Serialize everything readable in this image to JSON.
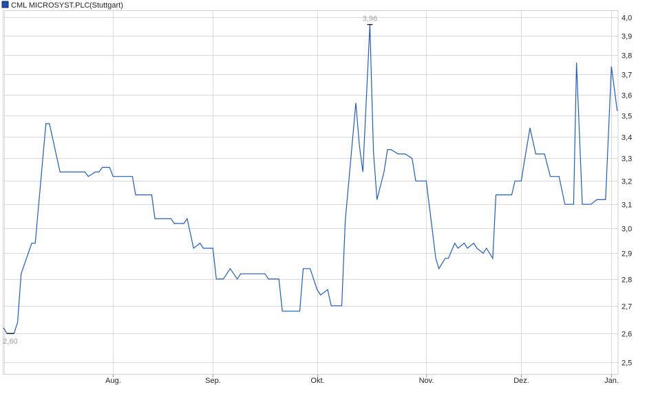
{
  "chart_data": {
    "type": "line",
    "title": "CML MICROSYST.PLC",
    "subtitle": "(Stuttgart)",
    "y_scale": "log",
    "ylim": [
      2.457,
      4.04
    ],
    "y_ticks": [
      "2,5",
      "2,6",
      "2,7",
      "2,8",
      "2,9",
      "3,0",
      "3,1",
      "3,2",
      "3,3",
      "3,4",
      "3,5",
      "3,6",
      "3,7",
      "3,8",
      "3,9",
      "4,0"
    ],
    "y_tick_values": [
      2.5,
      2.6,
      2.7,
      2.8,
      2.9,
      3.0,
      3.1,
      3.2,
      3.3,
      3.4,
      3.5,
      3.6,
      3.7,
      3.8,
      3.9,
      4.0
    ],
    "x_ticks": [
      "Aug.",
      "Sep.",
      "Okt.",
      "Nov.",
      "Dez.",
      "Jan."
    ],
    "grid": true,
    "legend": "top-left",
    "colors": {
      "line": "#1f5bbf",
      "legend_square": "#1f4fa8",
      "grid": "#d9d9d9",
      "annotation": "#a0a0a0"
    },
    "annotations": {
      "min": {
        "label": "2,60",
        "date": "03.07.",
        "value": 2.6
      },
      "max": {
        "label": "3,96",
        "date": "16.10.",
        "value": 3.96
      }
    },
    "series": [
      {
        "points": [
          [
            "01.07.",
            2.62
          ],
          [
            "02.07.",
            2.6
          ],
          [
            "04.07.",
            2.6
          ],
          [
            "05.07.",
            2.64
          ],
          [
            "06.07.",
            2.82
          ],
          [
            "09.07.",
            2.94
          ],
          [
            "10.07.",
            2.94
          ],
          [
            "13.07.",
            3.46
          ],
          [
            "14.07.",
            3.46
          ],
          [
            "17.07.",
            3.24
          ],
          [
            "24.07.",
            3.24
          ],
          [
            "25.07.",
            3.22
          ],
          [
            "27.07.",
            3.24
          ],
          [
            "28.07.",
            3.24
          ],
          [
            "29.07.",
            3.26
          ],
          [
            "31.07.",
            3.26
          ],
          [
            "01.08.",
            3.22
          ],
          [
            "07.08.",
            3.22
          ],
          [
            "08.08.",
            3.14
          ],
          [
            "13.08.",
            3.14
          ],
          [
            "14.08.",
            3.04
          ],
          [
            "19.08.",
            3.04
          ],
          [
            "20.08.",
            3.02
          ],
          [
            "23.08.",
            3.02
          ],
          [
            "24.08.",
            3.04
          ],
          [
            "26.08.",
            2.92
          ],
          [
            "28.08.",
            2.94
          ],
          [
            "29.08.",
            2.92
          ],
          [
            "01.09.",
            2.92
          ],
          [
            "02.09.",
            2.8
          ],
          [
            "04.09.",
            2.8
          ],
          [
            "06.09.",
            2.84
          ],
          [
            "08.09.",
            2.8
          ],
          [
            "09.09.",
            2.82
          ],
          [
            "16.09.",
            2.82
          ],
          [
            "17.09.",
            2.8
          ],
          [
            "20.09.",
            2.8
          ],
          [
            "21.09.",
            2.68
          ],
          [
            "26.09.",
            2.68
          ],
          [
            "27.09.",
            2.84
          ],
          [
            "29.09.",
            2.84
          ],
          [
            "01.10.",
            2.76
          ],
          [
            "02.10.",
            2.74
          ],
          [
            "04.10.",
            2.76
          ],
          [
            "05.10.",
            2.7
          ],
          [
            "08.10.",
            2.7
          ],
          [
            "09.10.",
            3.03
          ],
          [
            "12.10.",
            3.56
          ],
          [
            "13.10.",
            3.36
          ],
          [
            "14.10.",
            3.24
          ],
          [
            "16.10.",
            3.96
          ],
          [
            "17.10.",
            3.33
          ],
          [
            "18.10.",
            3.12
          ],
          [
            "20.10.",
            3.24
          ],
          [
            "21.10.",
            3.34
          ],
          [
            "22.10.",
            3.34
          ],
          [
            "24.10.",
            3.32
          ],
          [
            "26.10.",
            3.32
          ],
          [
            "28.10.",
            3.3
          ],
          [
            "29.10.",
            3.2
          ],
          [
            "01.11.",
            3.2
          ],
          [
            "02.11.",
            3.09
          ],
          [
            "04.11.",
            2.88
          ],
          [
            "05.11.",
            2.84
          ],
          [
            "07.11.",
            2.88
          ],
          [
            "08.11.",
            2.88
          ],
          [
            "10.11.",
            2.94
          ],
          [
            "11.11.",
            2.92
          ],
          [
            "13.11.",
            2.94
          ],
          [
            "14.11.",
            2.92
          ],
          [
            "16.11.",
            2.94
          ],
          [
            "17.11.",
            2.92
          ],
          [
            "19.11.",
            2.9
          ],
          [
            "20.11.",
            2.92
          ],
          [
            "22.11.",
            2.88
          ],
          [
            "23.11.",
            3.14
          ],
          [
            "28.11.",
            3.14
          ],
          [
            "29.11.",
            3.2
          ],
          [
            "01.12.",
            3.2
          ],
          [
            "02.12.",
            3.28
          ],
          [
            "04.12.",
            3.44
          ],
          [
            "06.12.",
            3.32
          ],
          [
            "09.12.",
            3.32
          ],
          [
            "11.12.",
            3.22
          ],
          [
            "14.12.",
            3.22
          ],
          [
            "16.12.",
            3.1
          ],
          [
            "19.12.",
            3.1
          ],
          [
            "20.12.",
            3.76
          ],
          [
            "22.12.",
            3.1
          ],
          [
            "25.12.",
            3.1
          ],
          [
            "27.12.",
            3.12
          ],
          [
            "30.12.",
            3.12
          ],
          [
            "01.01.",
            3.74
          ],
          [
            "03.01.",
            3.52
          ]
        ]
      }
    ]
  }
}
